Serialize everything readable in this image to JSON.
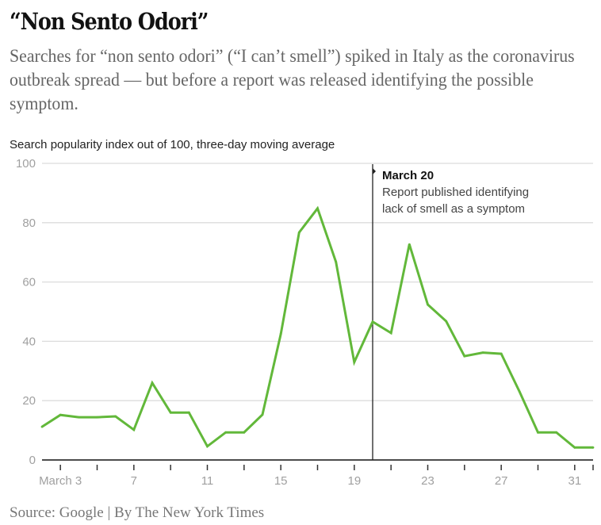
{
  "header": {
    "title": "“Non Sento Odori”",
    "subtitle": "Searches for “non sento odori” (“I can’t smell”) spiked in Italy as the coronavirus outbreak spread — but before a report was released identifying the possible symptom."
  },
  "footer": {
    "source": "Source: Google | By The New York Times"
  },
  "chart_data": {
    "type": "line",
    "title": "“Non Sento Odori”",
    "ylabel": "Search popularity index out of 100, three-day moving average",
    "xlabel": "",
    "ylim": [
      0,
      100
    ],
    "yticks": [
      0,
      20,
      40,
      60,
      80,
      100
    ],
    "grid": true,
    "line_color": "#62b83a",
    "x_day_range": [
      2,
      32
    ],
    "x_tick_days": [
      3,
      5,
      7,
      9,
      11,
      13,
      15,
      17,
      19,
      21,
      23,
      25,
      27,
      29,
      31,
      32
    ],
    "x_tick_labels": [
      {
        "day": 3,
        "label": "March 3"
      },
      {
        "day": 7,
        "label": "7"
      },
      {
        "day": 11,
        "label": "11"
      },
      {
        "day": 15,
        "label": "15"
      },
      {
        "day": 19,
        "label": "19"
      },
      {
        "day": 23,
        "label": "23"
      },
      {
        "day": 27,
        "label": "27"
      },
      {
        "day": 31,
        "label": "31"
      }
    ],
    "series": [
      {
        "name": "non sento odori",
        "x": [
          "Mar 2",
          "Mar 3",
          "Mar 4",
          "Mar 5",
          "Mar 6",
          "Mar 7",
          "Mar 8",
          "Mar 9",
          "Mar 10",
          "Mar 11",
          "Mar 12",
          "Mar 13",
          "Mar 14",
          "Mar 15",
          "Mar 16",
          "Mar 17",
          "Mar 18",
          "Mar 19",
          "Mar 20",
          "Mar 21",
          "Mar 22",
          "Mar 23",
          "Mar 24",
          "Mar 25",
          "Mar 26",
          "Mar 27",
          "Mar 28",
          "Mar 29",
          "Mar 30",
          "Mar 31",
          "Apr 1"
        ],
        "days": [
          2,
          3,
          4,
          5,
          6,
          7,
          8,
          9,
          10,
          11,
          12,
          13,
          14,
          15,
          16,
          17,
          18,
          19,
          20,
          21,
          22,
          23,
          24,
          25,
          26,
          27,
          28,
          29,
          30,
          31,
          32
        ],
        "values": [
          11.2,
          15.2,
          14.4,
          14.4,
          14.7,
          10.2,
          26,
          16,
          16,
          4.6,
          9.3,
          9.3,
          15.3,
          42.5,
          76.7,
          84.8,
          66.8,
          33,
          46.6,
          42.8,
          72.7,
          52.4,
          46.8,
          35,
          36.2,
          35.8,
          23,
          9.3,
          9.3,
          4.2,
          4.2
        ]
      }
    ],
    "annotations": [
      {
        "day": 20,
        "title": "March 20",
        "text": [
          "Report published identifying",
          "lack of smell as a symptom"
        ]
      }
    ]
  }
}
